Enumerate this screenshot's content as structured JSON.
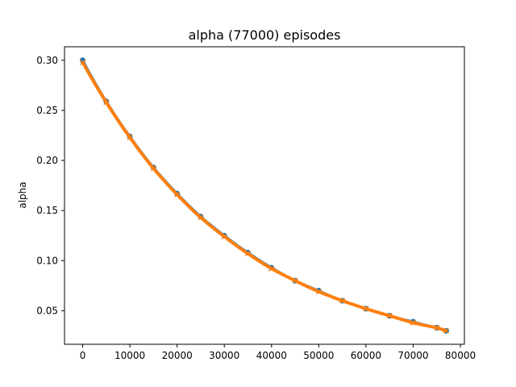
{
  "chart_data": {
    "type": "line",
    "title": "alpha (77000) episodes",
    "xlabel": "",
    "ylabel": "alpha",
    "xlim": [
      -3850,
      80850
    ],
    "ylim": [
      0.0165,
      0.3135
    ],
    "xticks": [
      0,
      10000,
      20000,
      30000,
      40000,
      50000,
      60000,
      70000,
      80000
    ],
    "xtick_labels": [
      "0",
      "10000",
      "20000",
      "30000",
      "40000",
      "50000",
      "60000",
      "70000",
      "80000"
    ],
    "yticks": [
      0.05,
      0.1,
      0.15,
      0.2,
      0.25,
      0.3
    ],
    "ytick_labels": [
      "0.05",
      "0.10",
      "0.15",
      "0.20",
      "0.25",
      "0.30"
    ],
    "grid": false,
    "legend": "none",
    "series": [
      {
        "marker": "circle",
        "color": "#1f77b4",
        "x": [
          0,
          5000,
          10000,
          15000,
          20000,
          25000,
          30000,
          35000,
          40000,
          45000,
          50000,
          55000,
          60000,
          65000,
          70000,
          75000,
          77000
        ],
        "y": [
          0.3,
          0.259,
          0.224,
          0.193,
          0.167,
          0.144,
          0.125,
          0.108,
          0.093,
          0.08,
          0.07,
          0.06,
          0.052,
          0.045,
          0.039,
          0.033,
          0.03
        ]
      },
      {
        "marker": "x",
        "color": "#ff7f0e",
        "x": [
          0,
          5000,
          10000,
          15000,
          20000,
          25000,
          30000,
          35000,
          40000,
          45000,
          50000,
          55000,
          60000,
          65000,
          70000,
          75000,
          77000
        ],
        "y": [
          0.298,
          0.258,
          0.223,
          0.192,
          0.166,
          0.143,
          0.124,
          0.107,
          0.092,
          0.08,
          0.069,
          0.06,
          0.052,
          0.045,
          0.038,
          0.033,
          0.03
        ]
      }
    ]
  }
}
